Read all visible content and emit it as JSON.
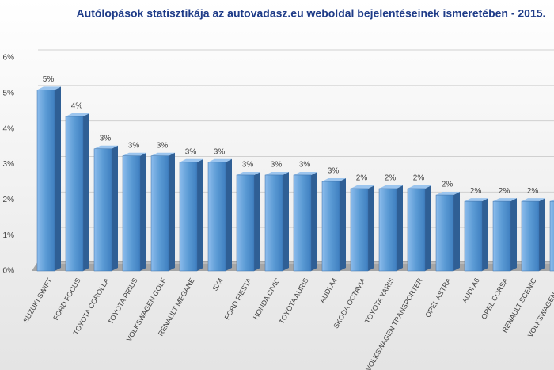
{
  "chart_data": {
    "type": "bar",
    "title": "Autólopások  statisztikája  az autovadasz.eu  weboldal  bejelentéseinek ismeretében - 2015.",
    "categories": [
      "SUZUKI SWIFT",
      "FORD FOCUS",
      "TOYOTA COROLLA",
      "TOYOTA PRIUS",
      "VOLKSWAGEN GOLF",
      "RENAULT MEGANE",
      "SX4",
      "FORD FIESTA",
      "HONDA CIVIC",
      "TOYOTA AURIS",
      "AUDI A4",
      "SKODA OCTAVIA",
      "TOYOTA YARIS",
      "VOLKSWAGEN TRANSPORTER",
      "OPEL ASTRA",
      "AUDI A6",
      "OPEL CORSA",
      "RENAULT SCENIC",
      "VOLKSWAGEN SHA"
    ],
    "values": [
      5.1,
      4.35,
      3.44,
      3.24,
      3.24,
      3.06,
      3.06,
      2.7,
      2.7,
      2.7,
      2.52,
      2.32,
      2.32,
      2.32,
      2.14,
      1.96,
      1.96,
      1.96,
      1.96
    ],
    "value_labels": [
      "5%",
      "4%",
      "3%",
      "3%",
      "3%",
      "3%",
      "3%",
      "3%",
      "3%",
      "3%",
      "3%",
      "2%",
      "2%",
      "2%",
      "2%",
      "2%",
      "2%",
      "2%",
      null
    ],
    "color": "#5b9bd5",
    "ylim": [
      0,
      6
    ],
    "yticks": [
      {
        "value": 0,
        "label": "0%"
      },
      {
        "value": 1,
        "label": "1%"
      },
      {
        "value": 2,
        "label": "2%"
      },
      {
        "value": 3,
        "label": "3%"
      },
      {
        "value": 4,
        "label": "4%"
      },
      {
        "value": 5,
        "label": "5%"
      },
      {
        "value": 6,
        "label": "6%"
      }
    ],
    "grid": true
  }
}
